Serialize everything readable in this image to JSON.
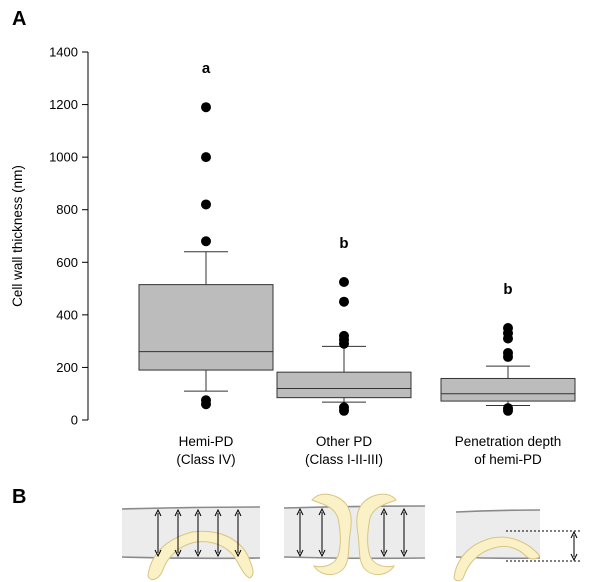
{
  "panels": {
    "a": "A",
    "b": "B"
  },
  "chart_data": {
    "type": "box",
    "ylabel": "Cell wall thickness (nm)",
    "xlabel": "",
    "ylim": [
      0,
      1400
    ],
    "yticks": [
      0,
      200,
      400,
      600,
      800,
      1000,
      1200,
      1400
    ],
    "grid": false,
    "categories": [
      {
        "lines": [
          "Hemi-PD",
          "(Class IV)"
        ]
      },
      {
        "lines": [
          "Other PD",
          "(Class I-II-III)"
        ]
      },
      {
        "lines": [
          "Penetration depth",
          "of hemi-PD"
        ]
      }
    ],
    "boxes": [
      {
        "q1": 190,
        "median": 260,
        "q3": 515,
        "whisker_low": 110,
        "whisker_high": 640,
        "outliers": [
          60,
          75,
          680,
          820,
          1000,
          1190
        ],
        "letter": "a"
      },
      {
        "q1": 85,
        "median": 120,
        "q3": 182,
        "whisker_low": 68,
        "whisker_high": 280,
        "outliers": [
          35,
          48,
          290,
          305,
          320,
          450,
          525
        ],
        "letter": "b"
      },
      {
        "q1": 72,
        "median": 100,
        "q3": 158,
        "whisker_low": 55,
        "whisker_high": 205,
        "outliers": [
          35,
          45,
          240,
          255,
          310,
          330,
          350
        ],
        "letter": "b"
      }
    ],
    "colors": {
      "box_fill": "#bcbcbc",
      "box_edge": "#333333",
      "marker": "#000000"
    }
  },
  "schematic": {
    "colors": {
      "band": "#ececec",
      "band_edge": "#8a8a8a",
      "pd_fill": "#fbf1c7",
      "pd_edge": "#d9c483",
      "arrow": "#000000"
    }
  }
}
